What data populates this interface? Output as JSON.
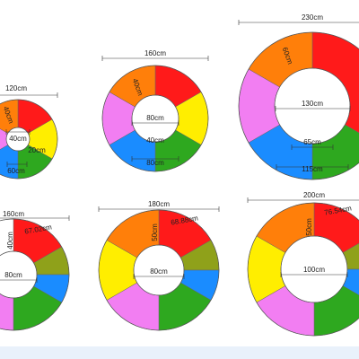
{
  "colors": {
    "red": "#ff1a1a",
    "yellow": "#ffee00",
    "green": "#2ea81f",
    "blue": "#1a8cff",
    "pink": "#f27ef2",
    "orange": "#ff7f0a",
    "olive": "#8fa11a",
    "white": "#ffffff",
    "footer": "#e9f1fb"
  },
  "rings": [
    {
      "id": "ring-120",
      "segments": [
        "red",
        "yellow",
        "green",
        "blue",
        "pink",
        "orange"
      ],
      "labels": [
        "120cm",
        "40cm",
        "20cm",
        "60cm",
        "40cm"
      ]
    },
    {
      "id": "ring-160",
      "segments": [
        "red",
        "yellow",
        "green",
        "blue",
        "pink",
        "orange"
      ],
      "labels": [
        "160cm",
        "40cm",
        "80cm",
        "40cm",
        "80cm"
      ]
    },
    {
      "id": "ring-230",
      "segments": [
        "red",
        "green",
        "blue",
        "pink",
        "orange"
      ],
      "labels": [
        "230cm",
        "60cm",
        "130cm",
        "65cm",
        "115cm"
      ]
    },
    {
      "id": "ring-160-b",
      "segments": [
        "red",
        "olive",
        "blue",
        "green",
        "pink",
        "yellow",
        "white"
      ],
      "labels": [
        "160cm",
        "40cm",
        "67.02cm",
        "80cm"
      ]
    },
    {
      "id": "ring-180",
      "segments": [
        "red",
        "olive",
        "blue",
        "green",
        "pink",
        "yellow",
        "orange",
        "white"
      ],
      "labels": [
        "180cm",
        "50cm",
        "68.88cm",
        "80cm"
      ]
    },
    {
      "id": "ring-200",
      "segments": [
        "red",
        "olive",
        "blue",
        "green",
        "pink",
        "yellow",
        "orange",
        "white"
      ],
      "labels": [
        "200cm",
        "50cm",
        "76.54cm",
        "100cm"
      ]
    }
  ]
}
